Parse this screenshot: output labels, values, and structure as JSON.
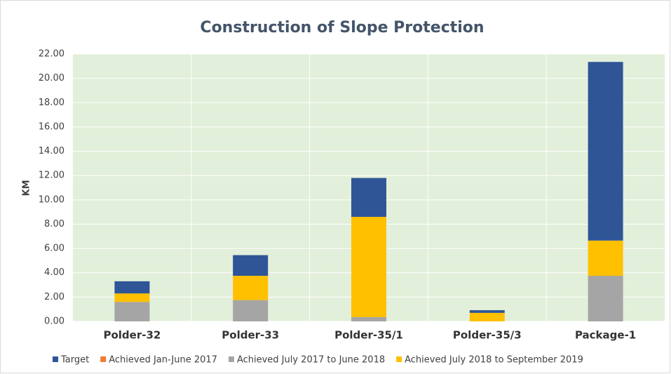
{
  "chart_data": {
    "type": "stacked_bar",
    "title": "Construction of Slope Protection",
    "y_label": "KM",
    "categories": [
      "Polder-32",
      "Polder-33",
      "Polder-35/1",
      "Polder-35/3",
      "Package-1"
    ],
    "series": [
      {
        "name": "Target",
        "color": "#2f5597",
        "values": [
          1.0,
          1.7,
          3.2,
          0.22,
          14.7
        ]
      },
      {
        "name": "Achieved Jan-June 2017",
        "color": "#ed7d31",
        "values": [
          0,
          0,
          0,
          0,
          0
        ]
      },
      {
        "name": "Achieved July 2017 to June 2018",
        "color": "#a5a5a5",
        "values": [
          1.6,
          1.75,
          0.35,
          0,
          3.75
        ]
      },
      {
        "name": "Achieved July 2018 to September 2019",
        "color": "#ffc000",
        "values": [
          0.7,
          2.0,
          8.25,
          0.7,
          2.9
        ]
      }
    ],
    "ylim": [
      0,
      22
    ],
    "yticks": [
      {
        "value": 0,
        "label": "0.00"
      },
      {
        "value": 2,
        "label": "2.00"
      },
      {
        "value": 4,
        "label": "4.00"
      },
      {
        "value": 6,
        "label": "6.00"
      },
      {
        "value": 8,
        "label": "8.00"
      },
      {
        "value": 10,
        "label": "10.00"
      },
      {
        "value": 12,
        "label": "12.00"
      },
      {
        "value": 14,
        "label": "14.00"
      },
      {
        "value": 16,
        "label": "16.00"
      },
      {
        "value": 18,
        "label": "18.00"
      },
      {
        "value": 20,
        "label": "20.00"
      },
      {
        "value": 22,
        "label": "22.00"
      }
    ],
    "grid": true,
    "legend": "bottom"
  }
}
